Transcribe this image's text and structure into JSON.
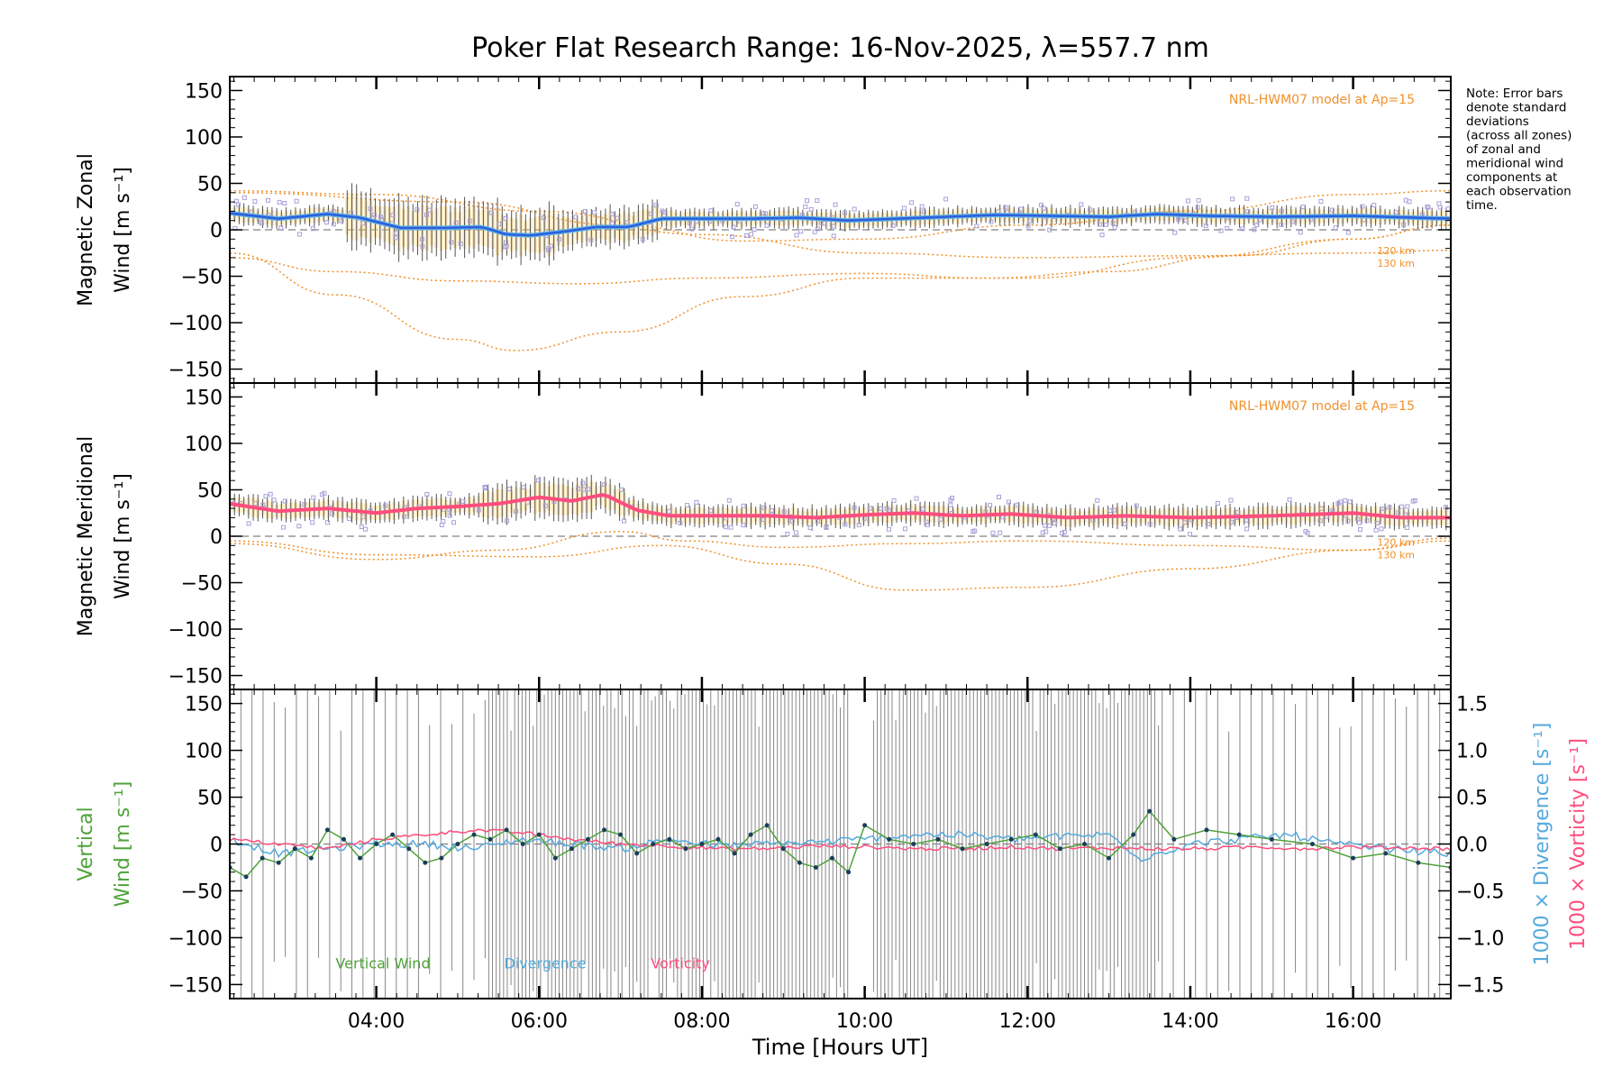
{
  "title": "Poker Flat Research Range: 16-Nov-2025, λ=557.7 nm",
  "note": [
    "Note: Error bars",
    "denote standard",
    "deviations",
    "(across all zones)",
    "of zonal and",
    "meridional wind",
    "components at",
    "each observation",
    "time."
  ],
  "colors": {
    "axis": "#000000",
    "model": "#f0902a",
    "errorbar": "#555555",
    "errorFill": "#f6d58a",
    "zonalLine": "#2d5fdc",
    "zonalLight": "#5fb4e8",
    "meridLine": "#ff4d7e",
    "zoneDots": "#a8a0d8",
    "vertical": "#4fa23a",
    "divergence": "#55aadd",
    "vorticity": "#ff4d7e",
    "verticalMarker": "#1a3d5c",
    "vertErr": "#888888",
    "zero": "#808080"
  },
  "xaxis": {
    "label": "Time [Hours UT]",
    "range": [
      2.2,
      17.2
    ],
    "ticks": [
      4,
      6,
      8,
      10,
      12,
      14,
      16
    ],
    "ticklabels": [
      "04:00",
      "06:00",
      "08:00",
      "10:00",
      "12:00",
      "14:00",
      "16:00"
    ]
  },
  "chart_data": [
    {
      "type": "line",
      "panel": "zonal",
      "ylabel": [
        "Magnetic Zonal",
        "Wind [m s⁻¹]"
      ],
      "ylim": [
        -165,
        165
      ],
      "yticks": [
        150,
        100,
        50,
        0,
        -50,
        -100,
        -150
      ],
      "yticklabels": [
        "150",
        "100",
        "50",
        "0",
        "−50",
        "−100",
        "−150"
      ],
      "model_label": "NRL-HWM07 model at Ap=15",
      "model_curves": [
        {
          "name": "120 km",
          "x": [
            2.2,
            3.5,
            5,
            6.5,
            8,
            10,
            11.5,
            13,
            14.5,
            16,
            17.2
          ],
          "y": [
            -30,
            -45,
            -55,
            -58,
            -52,
            -47,
            -52,
            -45,
            -28,
            -10,
            5
          ]
        },
        {
          "name": "130 km",
          "x": [
            2.2,
            3.5,
            5,
            5.7,
            7,
            8.5,
            10,
            12,
            14,
            16,
            17.2
          ],
          "y": [
            -25,
            -70,
            -118,
            -130,
            -110,
            -72,
            -52,
            -52,
            -30,
            -10,
            5
          ]
        },
        {
          "name": "",
          "x": [
            2.2,
            4,
            6,
            8,
            10,
            12,
            14,
            16,
            17.2
          ],
          "y": [
            42,
            38,
            20,
            -5,
            -25,
            -30,
            -28,
            -25,
            -22
          ]
        },
        {
          "name": "",
          "x": [
            2.2,
            5,
            7,
            8.5,
            10,
            12,
            14,
            16,
            17.2
          ],
          "y": [
            40,
            30,
            5,
            -12,
            -10,
            5,
            20,
            38,
            42
          ]
        }
      ],
      "model_labels": [
        "120 km",
        "130 km"
      ],
      "series": [
        {
          "name": "Zonal wind",
          "x": [
            2.2,
            2.8,
            3.4,
            3.8,
            4.3,
            4.8,
            5.3,
            5.6,
            5.9,
            6.3,
            6.7,
            7.1,
            7.5,
            8.0,
            8.6,
            9.2,
            9.8,
            10.4,
            11.0,
            11.6,
            12.3,
            13.0,
            13.6,
            14.2,
            15.0,
            16.0,
            17.2
          ],
          "values": [
            18,
            12,
            17,
            13,
            2,
            2,
            3,
            -5,
            -6,
            -2,
            3,
            3,
            12,
            12,
            12,
            13,
            10,
            12,
            14,
            16,
            15,
            14,
            17,
            15,
            14,
            15,
            12
          ]
        }
      ]
    },
    {
      "type": "line",
      "panel": "meridional",
      "ylabel": [
        "Magnetic Meridional",
        "Wind [m s⁻¹]"
      ],
      "ylim": [
        -165,
        165
      ],
      "yticks": [
        150,
        100,
        50,
        0,
        -50,
        -100,
        -150
      ],
      "yticklabels": [
        "150",
        "100",
        "50",
        "0",
        "−50",
        "−100",
        "−150"
      ],
      "model_label": "NRL-HWM07 model at Ap=15",
      "model_curves": [
        {
          "name": "120 km",
          "x": [
            2.2,
            4,
            6,
            7.5,
            9,
            10.5,
            12,
            14,
            16,
            17.2
          ],
          "y": [
            -5,
            -20,
            -22,
            -10,
            -30,
            -58,
            -55,
            -35,
            -15,
            -5
          ]
        },
        {
          "name": "130 km",
          "x": [
            2.2,
            4,
            5.5,
            7,
            7.8,
            9,
            10.5,
            12,
            14,
            16,
            17.2
          ],
          "y": [
            -8,
            -25,
            -15,
            5,
            -5,
            -12,
            -8,
            -5,
            -10,
            -15,
            -2
          ]
        }
      ],
      "model_labels": [
        "120 km",
        "130 km"
      ],
      "series": [
        {
          "name": "Meridional wind",
          "x": [
            2.2,
            2.8,
            3.4,
            4.0,
            4.5,
            5.0,
            5.5,
            6.0,
            6.4,
            6.8,
            7.2,
            7.6,
            8.2,
            8.8,
            9.4,
            10.0,
            10.6,
            11.2,
            11.8,
            12.5,
            13.2,
            14.0,
            15.0,
            16.0,
            16.6,
            17.2
          ],
          "values": [
            35,
            27,
            30,
            25,
            30,
            32,
            35,
            42,
            38,
            45,
            28,
            22,
            22,
            22,
            20,
            23,
            25,
            22,
            24,
            20,
            22,
            20,
            22,
            25,
            20,
            20
          ]
        }
      ]
    },
    {
      "type": "line",
      "panel": "vertical",
      "ylabel": [
        "Vertical",
        "Wind [m s⁻¹]"
      ],
      "ylim": [
        -165,
        165
      ],
      "yticks": [
        150,
        100,
        50,
        0,
        -50,
        -100,
        -150
      ],
      "yticklabels": [
        "150",
        "100",
        "50",
        "0",
        "−50",
        "−100",
        "−150"
      ],
      "y2label": [
        "1000 × Divergence [s⁻¹]",
        "1000 × Vorticity [s⁻¹]"
      ],
      "y2lim": [
        -1.65,
        1.65
      ],
      "y2ticks": [
        1.5,
        1.0,
        0.5,
        0.0,
        -0.5,
        -1.0,
        -1.5
      ],
      "y2ticklabels": [
        "1.5",
        "1.0",
        "0.5",
        "0.0",
        "−0.5",
        "−1.0",
        "−1.5"
      ],
      "legend": [
        "Vertical Wind",
        "Divergence",
        "Vorticity"
      ],
      "series": [
        {
          "name": "Vertical Wind",
          "x": [
            2.2,
            2.4,
            2.6,
            2.8,
            3.0,
            3.2,
            3.4,
            3.6,
            3.8,
            4.0,
            4.2,
            4.4,
            4.6,
            4.8,
            5.0,
            5.2,
            5.4,
            5.6,
            5.8,
            6.0,
            6.2,
            6.4,
            6.6,
            6.8,
            7.0,
            7.2,
            7.4,
            7.6,
            7.8,
            8.0,
            8.2,
            8.4,
            8.6,
            8.8,
            9.0,
            9.2,
            9.4,
            9.6,
            9.8,
            10.0,
            10.3,
            10.6,
            10.9,
            11.2,
            11.5,
            11.8,
            12.1,
            12.4,
            12.7,
            13.0,
            13.3,
            13.5,
            13.8,
            14.2,
            14.6,
            15.0,
            15.5,
            16.0,
            16.4,
            16.8,
            17.2
          ],
          "values": [
            -25,
            -35,
            -15,
            -20,
            -5,
            -15,
            15,
            5,
            -15,
            0,
            10,
            -5,
            -20,
            -15,
            0,
            10,
            5,
            15,
            0,
            10,
            -15,
            -5,
            5,
            15,
            10,
            -10,
            0,
            5,
            -5,
            0,
            5,
            -10,
            10,
            20,
            -5,
            -20,
            -25,
            -15,
            -30,
            20,
            5,
            0,
            5,
            -5,
            0,
            5,
            10,
            -5,
            0,
            -15,
            10,
            35,
            5,
            15,
            10,
            5,
            0,
            -15,
            -10,
            -20,
            -25
          ]
        },
        {
          "name": "Divergence",
          "x": [
            2.2,
            2.8,
            3.4,
            4.0,
            4.6,
            5.2,
            5.8,
            6.4,
            7.0,
            7.6,
            8.2,
            8.8,
            9.4,
            10.0,
            10.6,
            11.2,
            11.8,
            12.4,
            13.0,
            13.4,
            14.0,
            14.6,
            15.2,
            15.8,
            16.4,
            17.2
          ],
          "values": [
            0.05,
            -0.1,
            -0.05,
            0.0,
            0.0,
            -0.05,
            0.05,
            0.0,
            -0.05,
            0.05,
            -0.02,
            0.0,
            0.02,
            0.05,
            0.1,
            0.1,
            0.05,
            0.08,
            0.1,
            -0.15,
            0.0,
            0.05,
            0.1,
            0.0,
            -0.05,
            -0.1
          ]
        },
        {
          "name": "Vorticity",
          "x": [
            2.2,
            2.8,
            3.4,
            4.0,
            4.6,
            5.2,
            5.8,
            6.4,
            7.0,
            7.6,
            8.2,
            8.8,
            9.4,
            10.0,
            10.6,
            11.2,
            11.8,
            12.4,
            13.0,
            13.6,
            14.2,
            14.8,
            15.4,
            16.0,
            16.6,
            17.2
          ],
          "values": [
            0.05,
            0.0,
            -0.05,
            0.05,
            0.1,
            0.15,
            0.12,
            0.05,
            0.0,
            -0.02,
            -0.05,
            -0.05,
            -0.02,
            -0.03,
            -0.05,
            -0.05,
            -0.03,
            -0.05,
            -0.04,
            -0.05,
            -0.05,
            -0.03,
            -0.05,
            -0.03,
            -0.04,
            -0.05
          ]
        }
      ]
    }
  ]
}
